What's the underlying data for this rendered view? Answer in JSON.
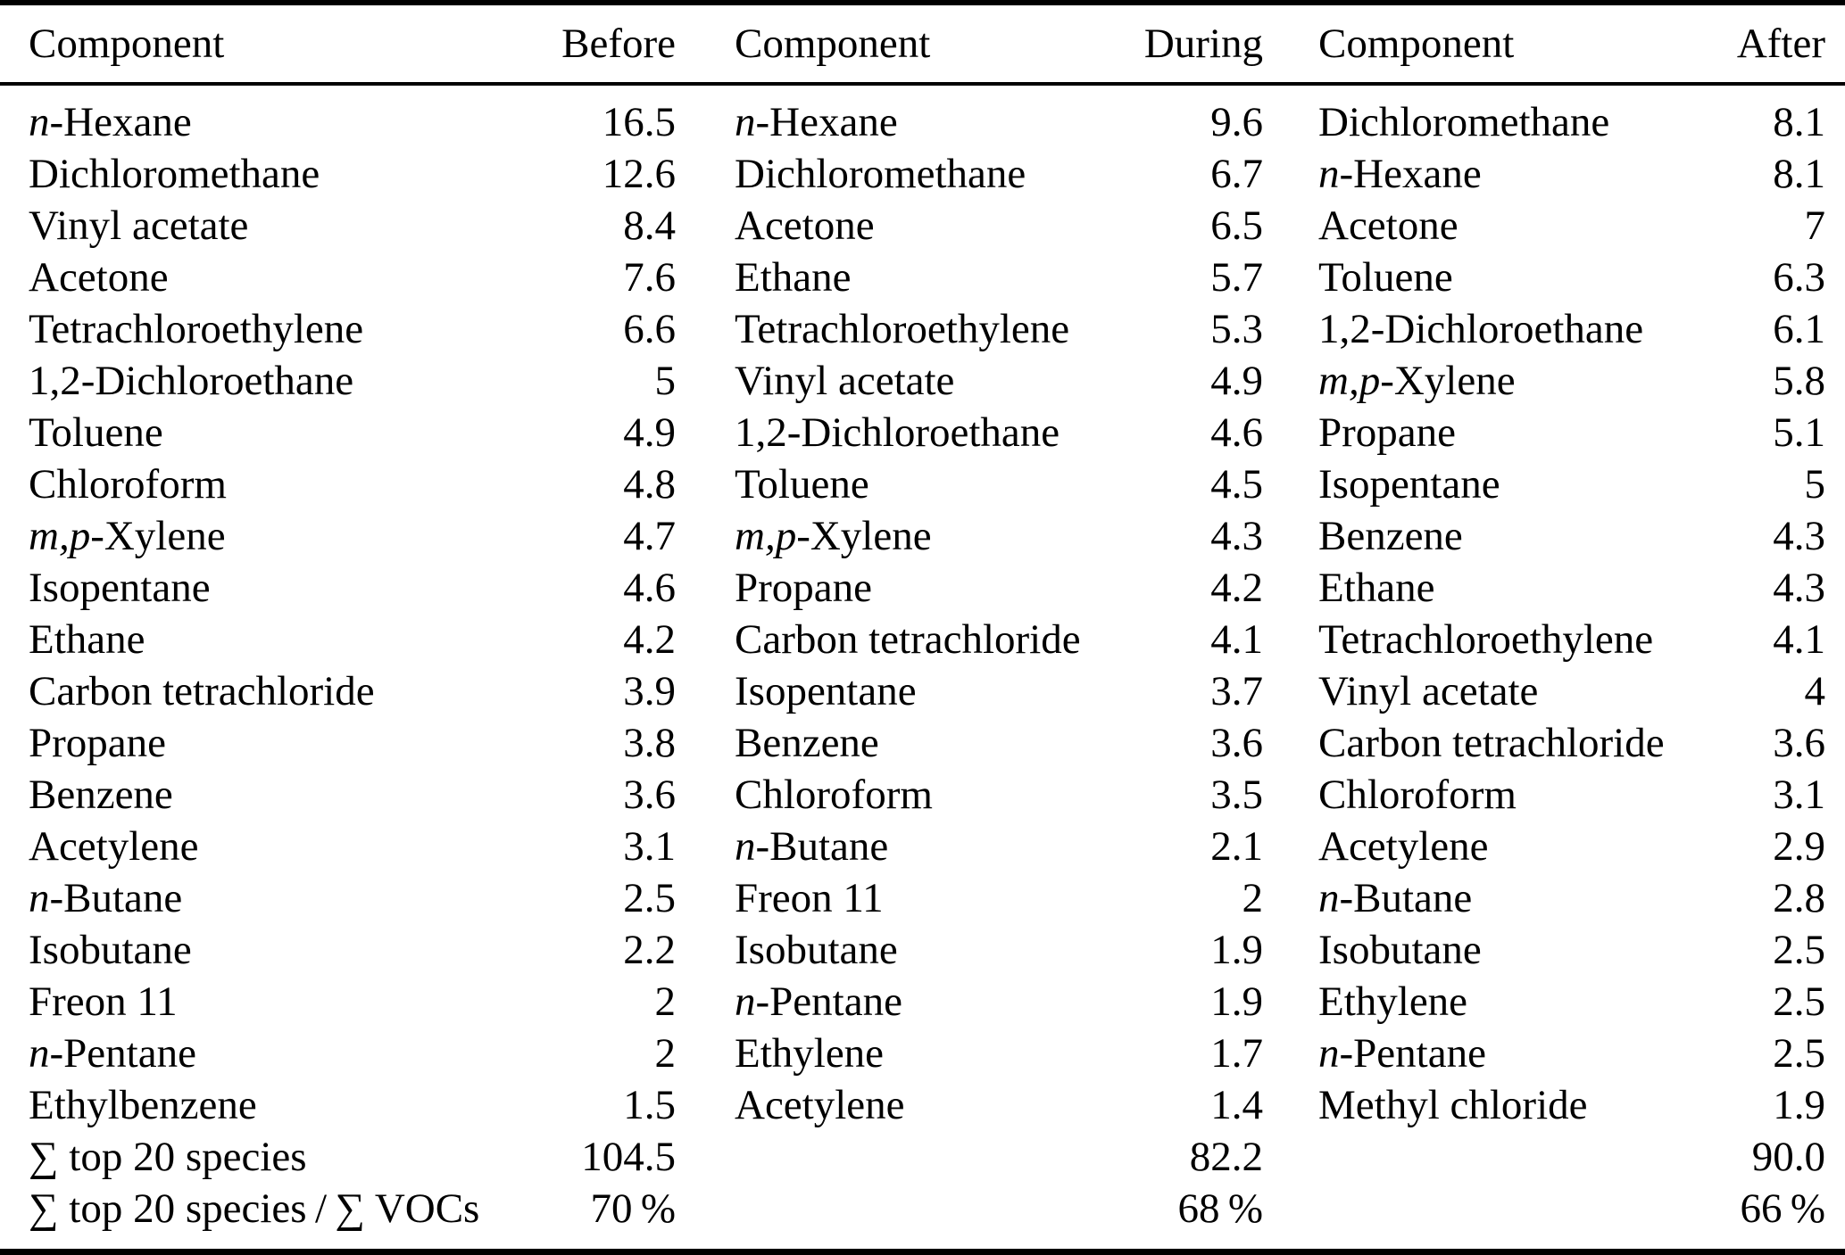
{
  "colors": {
    "text": "#000000",
    "background": "#ffffff",
    "rule": "#000000"
  },
  "table": {
    "groups": [
      {
        "header": {
          "component": "Component",
          "value": "Before"
        },
        "rows": [
          {
            "it": "n",
            "name": "-Hexane",
            "value": "16.5"
          },
          {
            "it": "",
            "name": "Dichloromethane",
            "value": "12.6"
          },
          {
            "it": "",
            "name": "Vinyl acetate",
            "value": "8.4"
          },
          {
            "it": "",
            "name": "Acetone",
            "value": "7.6"
          },
          {
            "it": "",
            "name": "Tetrachloroethylene",
            "value": "6.6"
          },
          {
            "it": "",
            "name": "1,2-Dichloroethane",
            "value": "5"
          },
          {
            "it": "",
            "name": "Toluene",
            "value": "4.9"
          },
          {
            "it": "",
            "name": "Chloroform",
            "value": "4.8"
          },
          {
            "it": "m,p",
            "name": "-Xylene",
            "value": "4.7"
          },
          {
            "it": "",
            "name": "Isopentane",
            "value": "4.6"
          },
          {
            "it": "",
            "name": "Ethane",
            "value": "4.2"
          },
          {
            "it": "",
            "name": "Carbon tetrachloride",
            "value": "3.9"
          },
          {
            "it": "",
            "name": "Propane",
            "value": "3.8"
          },
          {
            "it": "",
            "name": "Benzene",
            "value": "3.6"
          },
          {
            "it": "",
            "name": "Acetylene",
            "value": "3.1"
          },
          {
            "it": "n",
            "name": "-Butane",
            "value": "2.5"
          },
          {
            "it": "",
            "name": "Isobutane",
            "value": "2.2"
          },
          {
            "it": "",
            "name": "Freon 11",
            "value": "2"
          },
          {
            "it": "n",
            "name": "-Pentane",
            "value": "2"
          },
          {
            "it": "",
            "name": "Ethylbenzene",
            "value": "1.5"
          },
          {
            "it": "",
            "name": "∑ top 20 species",
            "value": "104.5"
          },
          {
            "it": "",
            "name": "∑ top 20 species / ∑ VOCs",
            "value": "70 %"
          }
        ]
      },
      {
        "header": {
          "component": "Component",
          "value": "During"
        },
        "rows": [
          {
            "it": "n",
            "name": "-Hexane",
            "value": "9.6"
          },
          {
            "it": "",
            "name": "Dichloromethane",
            "value": "6.7"
          },
          {
            "it": "",
            "name": "Acetone",
            "value": "6.5"
          },
          {
            "it": "",
            "name": "Ethane",
            "value": "5.7"
          },
          {
            "it": "",
            "name": "Tetrachloroethylene",
            "value": "5.3"
          },
          {
            "it": "",
            "name": "Vinyl acetate",
            "value": "4.9"
          },
          {
            "it": "",
            "name": "1,2-Dichloroethane",
            "value": "4.6"
          },
          {
            "it": "",
            "name": "Toluene",
            "value": "4.5"
          },
          {
            "it": "m,p",
            "name": "-Xylene",
            "value": "4.3"
          },
          {
            "it": "",
            "name": "Propane",
            "value": "4.2"
          },
          {
            "it": "",
            "name": "Carbon tetrachloride",
            "value": "4.1"
          },
          {
            "it": "",
            "name": "Isopentane",
            "value": "3.7"
          },
          {
            "it": "",
            "name": "Benzene",
            "value": "3.6"
          },
          {
            "it": "",
            "name": "Chloroform",
            "value": "3.5"
          },
          {
            "it": "n",
            "name": "-Butane",
            "value": "2.1"
          },
          {
            "it": "",
            "name": "Freon 11",
            "value": "2"
          },
          {
            "it": "",
            "name": "Isobutane",
            "value": "1.9"
          },
          {
            "it": "n",
            "name": "-Pentane",
            "value": "1.9"
          },
          {
            "it": "",
            "name": "Ethylene",
            "value": "1.7"
          },
          {
            "it": "",
            "name": "Acetylene",
            "value": "1.4"
          },
          {
            "it": "",
            "name": "",
            "value": "82.2"
          },
          {
            "it": "",
            "name": "",
            "value": "68 %"
          }
        ]
      },
      {
        "header": {
          "component": "Component",
          "value": "After"
        },
        "rows": [
          {
            "it": "",
            "name": "Dichloromethane",
            "value": "8.1"
          },
          {
            "it": "n",
            "name": "-Hexane",
            "value": "8.1"
          },
          {
            "it": "",
            "name": "Acetone",
            "value": "7"
          },
          {
            "it": "",
            "name": "Toluene",
            "value": "6.3"
          },
          {
            "it": "",
            "name": "1,2-Dichloroethane",
            "value": "6.1"
          },
          {
            "it": "m,p",
            "name": "-Xylene",
            "value": "5.8"
          },
          {
            "it": "",
            "name": "Propane",
            "value": "5.1"
          },
          {
            "it": "",
            "name": "Isopentane",
            "value": "5"
          },
          {
            "it": "",
            "name": "Benzene",
            "value": "4.3"
          },
          {
            "it": "",
            "name": "Ethane",
            "value": "4.3"
          },
          {
            "it": "",
            "name": "Tetrachloroethylene",
            "value": "4.1"
          },
          {
            "it": "",
            "name": "Vinyl acetate",
            "value": "4"
          },
          {
            "it": "",
            "name": "Carbon tetrachloride",
            "value": "3.6"
          },
          {
            "it": "",
            "name": "Chloroform",
            "value": "3.1"
          },
          {
            "it": "",
            "name": "Acetylene",
            "value": "2.9"
          },
          {
            "it": "n",
            "name": "-Butane",
            "value": "2.8"
          },
          {
            "it": "",
            "name": "Isobutane",
            "value": "2.5"
          },
          {
            "it": "",
            "name": "Ethylene",
            "value": "2.5"
          },
          {
            "it": "n",
            "name": "-Pentane",
            "value": "2.5"
          },
          {
            "it": "",
            "name": "Methyl chloride",
            "value": "1.9"
          },
          {
            "it": "",
            "name": "",
            "value": "90.0"
          },
          {
            "it": "",
            "name": "",
            "value": "66 %"
          }
        ]
      }
    ]
  }
}
